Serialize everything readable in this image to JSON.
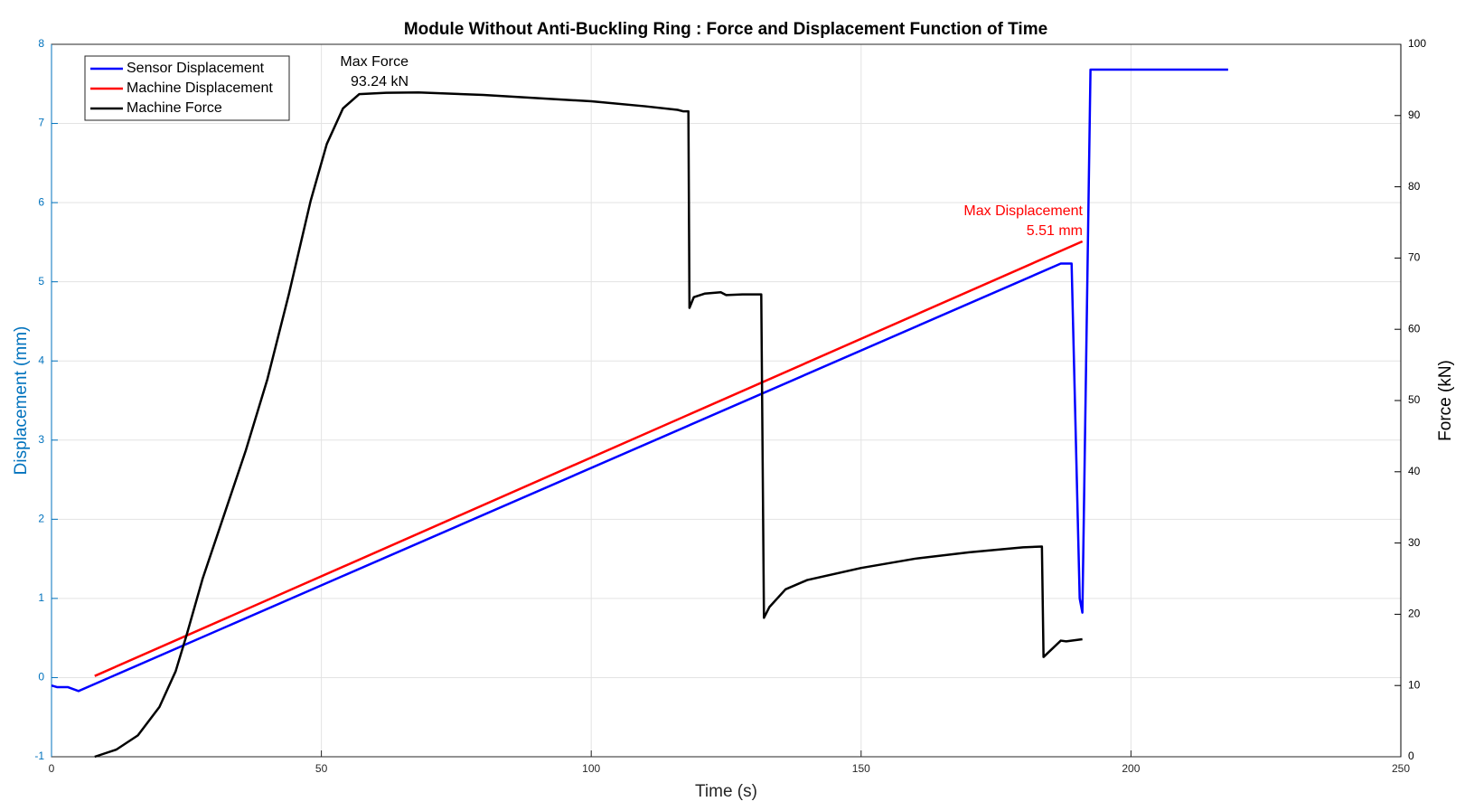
{
  "chart_data": {
    "type": "line",
    "title": "Module Without Anti-Buckling Ring : Force and Displacement Function of Time",
    "xlabel": "Time (s)",
    "ylabel": "Displacement (mm)",
    "y2label": "Force (kN)",
    "xlim": [
      0,
      250
    ],
    "xticks": [
      0,
      50,
      100,
      150,
      200,
      250
    ],
    "ylim": [
      -1,
      8
    ],
    "yticks": [
      -1,
      0,
      1,
      2,
      3,
      4,
      5,
      6,
      7,
      8
    ],
    "y2lim": [
      0,
      100
    ],
    "y2ticks": [
      0,
      10,
      20,
      30,
      40,
      50,
      60,
      70,
      80,
      90,
      100
    ],
    "ycolor": "#0072bd",
    "y2color": "#000000",
    "grid": true,
    "legend": "upper left",
    "series": [
      {
        "name": "Sensor Displacement",
        "color": "#0000ff",
        "x": [
          0,
          1,
          3,
          5,
          187,
          189,
          190.5,
          191,
          192.5,
          218
        ],
        "values": [
          -0.1,
          -0.12,
          -0.12,
          -0.17,
          5.23,
          5.23,
          1.0,
          0.82,
          7.68,
          7.68
        ]
      },
      {
        "name": "Machine Displacement",
        "color": "#ff0000",
        "x": [
          8,
          191
        ],
        "values": [
          0.02,
          5.51
        ]
      },
      {
        "name": "Machine Force",
        "color": "#000000",
        "axis": "y2",
        "x": [
          8,
          12,
          16,
          20,
          23,
          25,
          28,
          32,
          36,
          40,
          44,
          48,
          51,
          54,
          57,
          62,
          68,
          80,
          100,
          110,
          116,
          117,
          118,
          118.2,
          119,
          121,
          124,
          125,
          128,
          131.5,
          132,
          133,
          136,
          140,
          150,
          160,
          170,
          180,
          183.5,
          183.8,
          187,
          188,
          191
        ],
        "values": [
          0,
          1,
          3,
          7,
          12,
          17,
          25,
          34,
          43,
          53,
          65,
          78,
          86,
          91,
          93,
          93.2,
          93.24,
          92.9,
          92,
          91.3,
          90.8,
          90.6,
          90.6,
          63,
          64.5,
          65,
          65.2,
          64.8,
          64.9,
          64.9,
          19.5,
          21,
          23.5,
          24.8,
          26.5,
          27.8,
          28.7,
          29.4,
          29.5,
          14,
          16.3,
          16.2,
          16.5
        ]
      }
    ],
    "annotations": [
      {
        "lines": [
          "Max Force",
          "93.24 kN"
        ],
        "color": "#000000"
      },
      {
        "lines": [
          "Max Displacement",
          "5.51 mm"
        ],
        "color": "#ff0000"
      }
    ]
  }
}
